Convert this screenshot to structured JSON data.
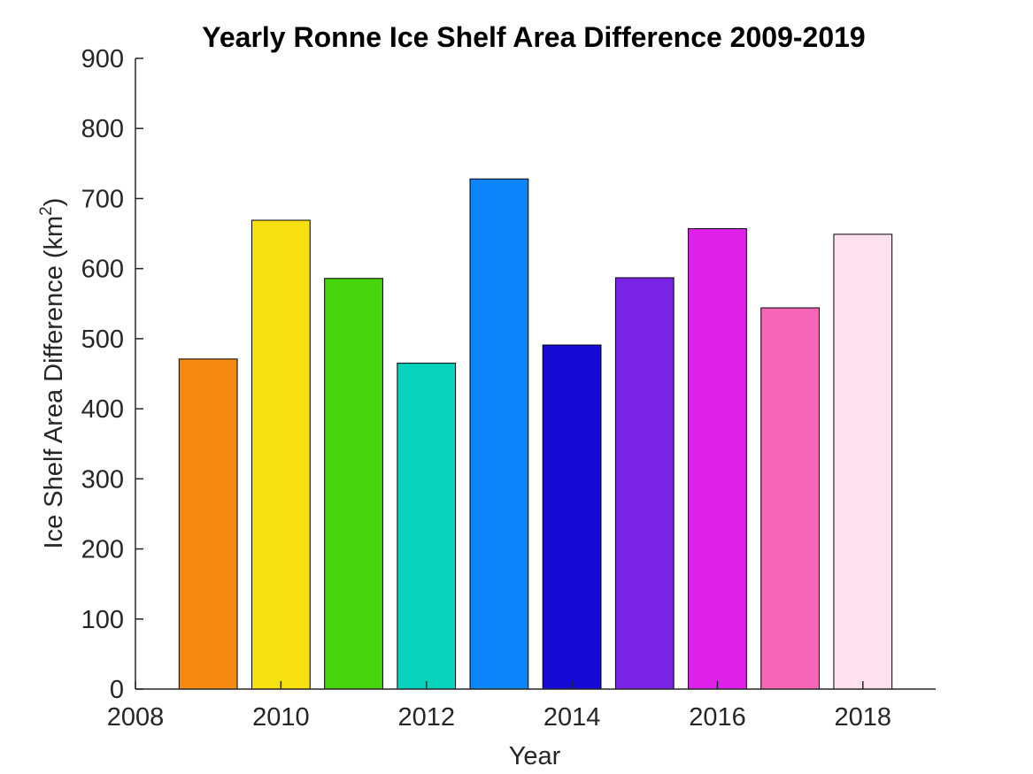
{
  "chart_data": {
    "type": "bar",
    "title": "Yearly Ronne Ice Shelf Area Difference 2009-2019",
    "xlabel": "Year",
    "ylabel": "Ice Shelf Area Difference (km",
    "ylabel_superscript": "2",
    "ylabel_suffix": ")",
    "xlim": [
      2008,
      2019
    ],
    "ylim": [
      0,
      900
    ],
    "x_ticks": [
      2008,
      2010,
      2012,
      2014,
      2016,
      2018
    ],
    "y_ticks": [
      0,
      100,
      200,
      300,
      400,
      500,
      600,
      700,
      800,
      900
    ],
    "x": [
      2009,
      2010,
      2011,
      2012,
      2013,
      2014,
      2015,
      2016,
      2017,
      2018
    ],
    "values": [
      471,
      669,
      586,
      465,
      728,
      491,
      587,
      657,
      544,
      649
    ],
    "colors": [
      "#F58A10",
      "#F6E010",
      "#46D40A",
      "#08D3BD",
      "#0A86FA",
      "#150BD4",
      "#7A25E6",
      "#DF22EA",
      "#F765B6",
      "#FFE0F0"
    ],
    "grid": false,
    "legend": "none"
  }
}
